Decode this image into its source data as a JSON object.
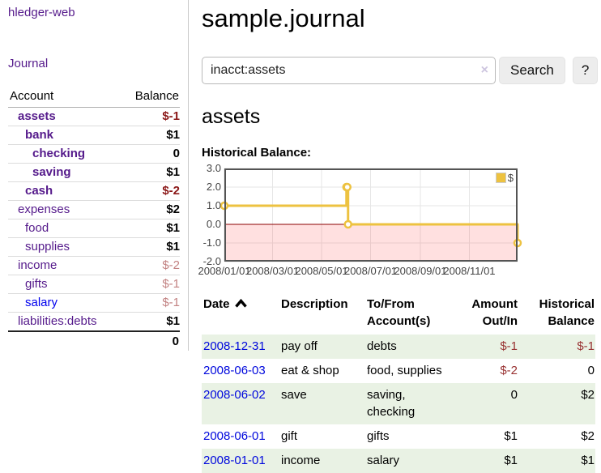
{
  "app": {
    "brand": "hledger-web"
  },
  "nav": {
    "journal": "Journal"
  },
  "sidebar": {
    "headers": {
      "account": "Account",
      "balance": "Balance"
    },
    "accounts": [
      {
        "name": "assets",
        "balance": "$-1",
        "level": 1,
        "bold": true
      },
      {
        "name": "bank",
        "balance": "$1",
        "level": 2,
        "bold": true
      },
      {
        "name": "checking",
        "balance": "0",
        "level": 3,
        "bold": true
      },
      {
        "name": "saving",
        "balance": "$1",
        "level": 3,
        "bold": true
      },
      {
        "name": "cash",
        "balance": "$-2",
        "level": 2,
        "bold": true
      },
      {
        "name": "expenses",
        "balance": "$2",
        "level": 1,
        "bold": false
      },
      {
        "name": "food",
        "balance": "$1",
        "level": 2,
        "bold": false
      },
      {
        "name": "supplies",
        "balance": "$1",
        "level": 2,
        "bold": false
      },
      {
        "name": "income",
        "balance": "$-2",
        "level": 1,
        "bold": false
      },
      {
        "name": "gifts",
        "balance": "$-1",
        "level": 2,
        "bold": false
      },
      {
        "name": "salary",
        "balance": "$-1",
        "level": 2,
        "bold": false,
        "link_color": "#0000EE"
      },
      {
        "name": "liabilities:debts",
        "balance": "$1",
        "level": 1,
        "bold": false
      }
    ],
    "total": "0"
  },
  "header": {
    "title": "sample.journal"
  },
  "search": {
    "value": "inacct:assets",
    "clear_icon": "×",
    "button_label": "Search",
    "help_label": "?"
  },
  "account_page": {
    "title": "assets",
    "chart_label": "Historical Balance:"
  },
  "chart_data": {
    "type": "line",
    "title": "Historical Balance:",
    "series": [
      {
        "name": "$",
        "color": "#EDC240",
        "steps": true,
        "points": [
          [
            "2008-01-01",
            1
          ],
          [
            "2008-06-01",
            2
          ],
          [
            "2008-06-02",
            2
          ],
          [
            "2008-06-03",
            0
          ],
          [
            "2008-12-31",
            -1
          ]
        ]
      }
    ],
    "xlim": [
      "2008-01-01",
      "2008-12-31"
    ],
    "ylim": [
      -2,
      3
    ],
    "yticks": [
      3.0,
      2.0,
      1.0,
      0.0,
      -1.0,
      -2.0
    ],
    "xticks": [
      {
        "date": "2008-01-01",
        "label": "2008/01/01"
      },
      {
        "date": "2008-03-01",
        "label": "2008/03/01"
      },
      {
        "date": "2008-05-01",
        "label": "2008/05/01"
      },
      {
        "date": "2008-07-01",
        "label": "2008/07/01"
      },
      {
        "date": "2008-09-01",
        "label": "2008/09/01"
      },
      {
        "date": "2008-11-01",
        "label": "2008/11/01"
      }
    ],
    "grid": true,
    "gridline_color": "#e6e6e6",
    "border_color": "#545454",
    "zero_line_color": "#8b0000",
    "negative_region_color": "rgba(255,0,0,0.12)",
    "legend_position": "top-right"
  },
  "register": {
    "headers": [
      "Date",
      "Description",
      "To/From\nAccount(s)",
      "Amount\nOut/In",
      "Historical\nBalance"
    ],
    "rows": [
      {
        "date": "2008-12-31",
        "description": "pay off",
        "accounts": "debts",
        "amount": "$-1",
        "balance": "$-1"
      },
      {
        "date": "2008-06-03",
        "description": "eat & shop",
        "accounts": "food, supplies",
        "amount": "$-2",
        "balance": "0"
      },
      {
        "date": "2008-06-02",
        "description": "save",
        "accounts": "saving, checking",
        "amount": "0",
        "balance": "$2"
      },
      {
        "date": "2008-06-01",
        "description": "gift",
        "accounts": "gifts",
        "amount": "$1",
        "balance": "$2"
      },
      {
        "date": "2008-01-01",
        "description": "income",
        "accounts": "salary",
        "amount": "$1",
        "balance": "$1"
      }
    ]
  },
  "colors": {
    "link_purple": "#551A8B",
    "link_blue": "#0008dd",
    "negative_strong": "#8b1818",
    "negative_muted": "#c28282",
    "negative_register": "#993333",
    "row_shade_green": "#e9f2e4",
    "series_yellow": "#EDC240"
  }
}
